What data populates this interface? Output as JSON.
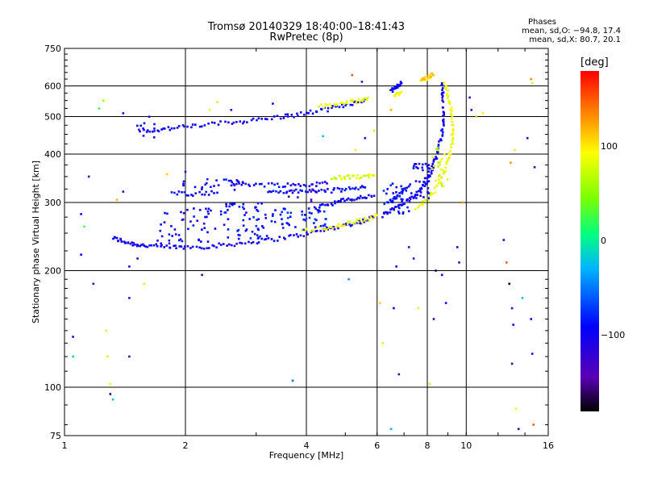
{
  "header": {
    "title": "Tromsø 20140329 18:40:00–18:41:43",
    "subtitle": "RwPretec (8p)"
  },
  "stats": {
    "heading": "Phases",
    "line_o": "mean, sd,O: −94.8, 17.4",
    "line_x": "mean, sd,X:  80.7, 20.1"
  },
  "colorbar": {
    "unit": "[deg]",
    "ticks": [
      "100",
      "0",
      "−100"
    ],
    "tick_values": [
      100,
      0,
      -100
    ],
    "range": [
      -180,
      180
    ]
  },
  "chart_data": {
    "type": "scatter",
    "xlabel": "Frequency [MHz]",
    "ylabel": "Stationary phase Virtual Height [km]",
    "xlim": [
      1,
      16
    ],
    "ylim": [
      75,
      750
    ],
    "xscale": "log",
    "yscale": "log",
    "xticks": [
      1,
      2,
      4,
      6,
      8,
      10,
      16
    ],
    "xtick_labels": [
      "1",
      "2",
      "4",
      "6",
      "8",
      "10",
      "16"
    ],
    "yticks": [
      75,
      100,
      200,
      300,
      400,
      500,
      600,
      750
    ],
    "ytick_labels": [
      "75",
      "100",
      "200",
      "300",
      "400",
      "500",
      "600",
      "750"
    ],
    "grid": true,
    "color_value": "phase [deg]",
    "series": [
      {
        "traces": [
          {
            "phase": -100,
            "points": [
              [
                1.32,
                243
              ],
              [
                1.4,
                238
              ],
              [
                1.5,
                234
              ],
              [
                1.6,
                232
              ],
              [
                1.8,
                230
              ],
              [
                2.0,
                230
              ],
              [
                2.3,
                231
              ],
              [
                2.6,
                234
              ],
              [
                3.0,
                238
              ],
              [
                3.5,
                243
              ],
              [
                4.0,
                249
              ],
              [
                4.5,
                256
              ],
              [
                5.0,
                262
              ],
              [
                5.5,
                268
              ],
              [
                5.9,
                275
              ]
            ]
          },
          {
            "phase": -95,
            "points": [
              [
                1.55,
                462
              ],
              [
                1.7,
                462
              ],
              [
                1.9,
                468
              ],
              [
                2.2,
                475
              ],
              [
                2.6,
                483
              ],
              [
                3.0,
                490
              ],
              [
                3.5,
                500
              ],
              [
                4.0,
                510
              ],
              [
                4.5,
                522
              ],
              [
                5.0,
                535
              ],
              [
                5.6,
                555
              ]
            ]
          },
          {
            "phase": -95,
            "points": [
              [
                2.6,
                336
              ],
              [
                3.0,
                334
              ],
              [
                3.5,
                333
              ],
              [
                4.0,
                333
              ],
              [
                4.5,
                336
              ]
            ]
          },
          {
            "phase": -90,
            "points": [
              [
                1.85,
                318
              ],
              [
                2.1,
                316
              ],
              [
                2.4,
                318
              ]
            ]
          },
          {
            "phase": -90,
            "points": [
              [
                3.2,
                320
              ],
              [
                3.6,
                320
              ],
              [
                4.1,
                321
              ],
              [
                4.6,
                322
              ],
              [
                5.1,
                325
              ],
              [
                5.6,
                328
              ]
            ]
          },
          {
            "phase": -95,
            "points": [
              [
                4.2,
                292
              ],
              [
                4.6,
                298
              ],
              [
                5.0,
                304
              ],
              [
                5.4,
                308
              ],
              [
                5.9,
                312
              ]
            ]
          },
          {
            "phase": -100,
            "points": [
              [
                6.2,
                278
              ],
              [
                6.5,
                286
              ],
              [
                6.9,
                296
              ],
              [
                7.3,
                306
              ],
              [
                7.6,
                320
              ],
              [
                7.9,
                336
              ],
              [
                8.1,
                352
              ],
              [
                8.3,
                375
              ],
              [
                8.5,
                410
              ],
              [
                8.7,
                450
              ],
              [
                8.8,
                500
              ],
              [
                8.75,
                560
              ],
              [
                8.7,
                610
              ]
            ]
          },
          {
            "phase": -90,
            "points": [
              [
                6.4,
                300
              ],
              [
                6.8,
                312
              ],
              [
                7.2,
                330
              ]
            ]
          },
          {
            "phase": -95,
            "points": [
              [
                6.5,
                582
              ],
              [
                6.7,
                595
              ],
              [
                6.9,
                610
              ]
            ]
          },
          {
            "phase": 90,
            "points": [
              [
                3.9,
                254
              ],
              [
                4.5,
                258
              ],
              [
                5.0,
                264
              ],
              [
                5.5,
                270
              ],
              [
                6.0,
                278
              ]
            ]
          },
          {
            "phase": 90,
            "points": [
              [
                7.5,
                290
              ],
              [
                8.0,
                305
              ],
              [
                8.5,
                330
              ],
              [
                8.9,
                370
              ],
              [
                9.2,
                420
              ],
              [
                9.25,
                470
              ],
              [
                9.2,
                520
              ],
              [
                9.0,
                570
              ],
              [
                8.8,
                610
              ]
            ]
          },
          {
            "phase": 85,
            "points": [
              [
                4.3,
                530
              ],
              [
                4.8,
                540
              ],
              [
                5.3,
                548
              ],
              [
                5.7,
                560
              ]
            ]
          },
          {
            "phase": 80,
            "points": [
              [
                4.6,
                345
              ],
              [
                5.0,
                348
              ],
              [
                5.5,
                350
              ],
              [
                5.9,
                352
              ]
            ]
          },
          {
            "phase": 90,
            "points": [
              [
                6.6,
                565
              ],
              [
                6.9,
                580
              ]
            ]
          },
          {
            "phase": 110,
            "points": [
              [
                7.7,
                625
              ],
              [
                8.0,
                630
              ],
              [
                8.3,
                640
              ]
            ]
          }
        ],
        "clusters": [
          {
            "phase": -100,
            "x": [
              1.7,
              2.5
            ],
            "y": [
              235,
              290
            ],
            "n": 50
          },
          {
            "phase": -90,
            "x": [
              2.5,
              3.2
            ],
            "y": [
              240,
              300
            ],
            "n": 55
          },
          {
            "phase": -85,
            "x": [
              3.2,
              4.5
            ],
            "y": [
              255,
              290
            ],
            "n": 50
          },
          {
            "phase": -95,
            "x": [
              1.9,
              2.8
            ],
            "y": [
              320,
              345
            ],
            "n": 25
          },
          {
            "phase": -90,
            "x": [
              6.2,
              7.3
            ],
            "y": [
              280,
              340
            ],
            "n": 30
          },
          {
            "phase": -95,
            "x": [
              7.3,
              8.1
            ],
            "y": [
              300,
              380
            ],
            "n": 30
          },
          {
            "phase": -140,
            "x": [
              3.5,
              4.5
            ],
            "y": [
              300,
              325
            ],
            "n": 8
          },
          {
            "phase": 80,
            "x": [
              8.2,
              9.0
            ],
            "y": [
              330,
              420
            ],
            "n": 25
          },
          {
            "phase": -110,
            "x": [
              1.5,
              1.7
            ],
            "y": [
              440,
              500
            ],
            "n": 8
          }
        ],
        "scattered": [
          [
            1.22,
            525,
            20
          ],
          [
            1.25,
            550,
            60
          ],
          [
            1.4,
            320,
            -130
          ],
          [
            1.4,
            510,
            -110
          ],
          [
            1.15,
            350,
            -140
          ],
          [
            1.1,
            280,
            -100
          ],
          [
            1.18,
            185,
            -130
          ],
          [
            1.27,
            140,
            80
          ],
          [
            1.28,
            120,
            75
          ],
          [
            1.3,
            102,
            100
          ],
          [
            1.3,
            96,
            -160
          ],
          [
            1.32,
            93,
            -20
          ],
          [
            1.45,
            170,
            -130
          ],
          [
            1.45,
            120,
            -140
          ],
          [
            1.58,
            185,
            80
          ],
          [
            1.05,
            120,
            -10
          ],
          [
            1.05,
            135,
            -110
          ],
          [
            1.1,
            220,
            -100
          ],
          [
            1.12,
            260,
            30
          ],
          [
            1.52,
            215,
            -120
          ],
          [
            1.45,
            205,
            -120
          ],
          [
            1.35,
            305,
            120
          ],
          [
            1.8,
            355,
            110
          ],
          [
            2.0,
            360,
            -120
          ],
          [
            2.3,
            520,
            90
          ],
          [
            2.4,
            545,
            80
          ],
          [
            2.6,
            520,
            -110
          ],
          [
            3.3,
            540,
            -100
          ],
          [
            3.6,
            500,
            -110
          ],
          [
            3.7,
            104,
            -50
          ],
          [
            5.1,
            190,
            -40
          ],
          [
            5.2,
            640,
            150
          ],
          [
            5.5,
            615,
            -130
          ],
          [
            5.3,
            410,
            100
          ],
          [
            5.6,
            440,
            -120
          ],
          [
            6.1,
            165,
            110
          ],
          [
            6.2,
            130,
            80
          ],
          [
            6.6,
            160,
            -100
          ],
          [
            6.7,
            205,
            -110
          ],
          [
            6.5,
            78,
            -30
          ],
          [
            6.8,
            108,
            -150
          ],
          [
            7.2,
            230,
            -130
          ],
          [
            7.4,
            215,
            -120
          ],
          [
            7.6,
            160,
            100
          ],
          [
            8.1,
            102,
            80
          ],
          [
            8.3,
            150,
            -150
          ],
          [
            8.4,
            200,
            -160
          ],
          [
            8.7,
            195,
            -90
          ],
          [
            8.9,
            165,
            -110
          ],
          [
            9.5,
            230,
            -100
          ],
          [
            9.6,
            210,
            -130
          ],
          [
            9.8,
            300,
            130
          ],
          [
            10.3,
            520,
            -140
          ],
          [
            10.6,
            500,
            110
          ],
          [
            11.0,
            510,
            100
          ],
          [
            12.4,
            240,
            -110
          ],
          [
            12.6,
            210,
            150
          ],
          [
            12.8,
            185,
            -170
          ],
          [
            13.0,
            160,
            -130
          ],
          [
            13.1,
            145,
            -100
          ],
          [
            13.0,
            115,
            -150
          ],
          [
            13.3,
            88,
            90
          ],
          [
            13.5,
            78,
            -110
          ],
          [
            13.8,
            170,
            -20
          ],
          [
            14.5,
            150,
            -120
          ],
          [
            14.6,
            122,
            -120
          ],
          [
            14.8,
            370,
            -150
          ],
          [
            14.2,
            440,
            -110
          ],
          [
            14.5,
            625,
            130
          ],
          [
            14.6,
            610,
            100
          ],
          [
            14.7,
            80,
            150
          ],
          [
            13.2,
            410,
            100
          ],
          [
            12.9,
            380,
            130
          ],
          [
            10.2,
            560,
            -120
          ],
          [
            6.5,
            520,
            120
          ],
          [
            5.9,
            460,
            80
          ],
          [
            4.4,
            445,
            -20
          ],
          [
            2.2,
            195,
            -150
          ]
        ]
      }
    ]
  }
}
